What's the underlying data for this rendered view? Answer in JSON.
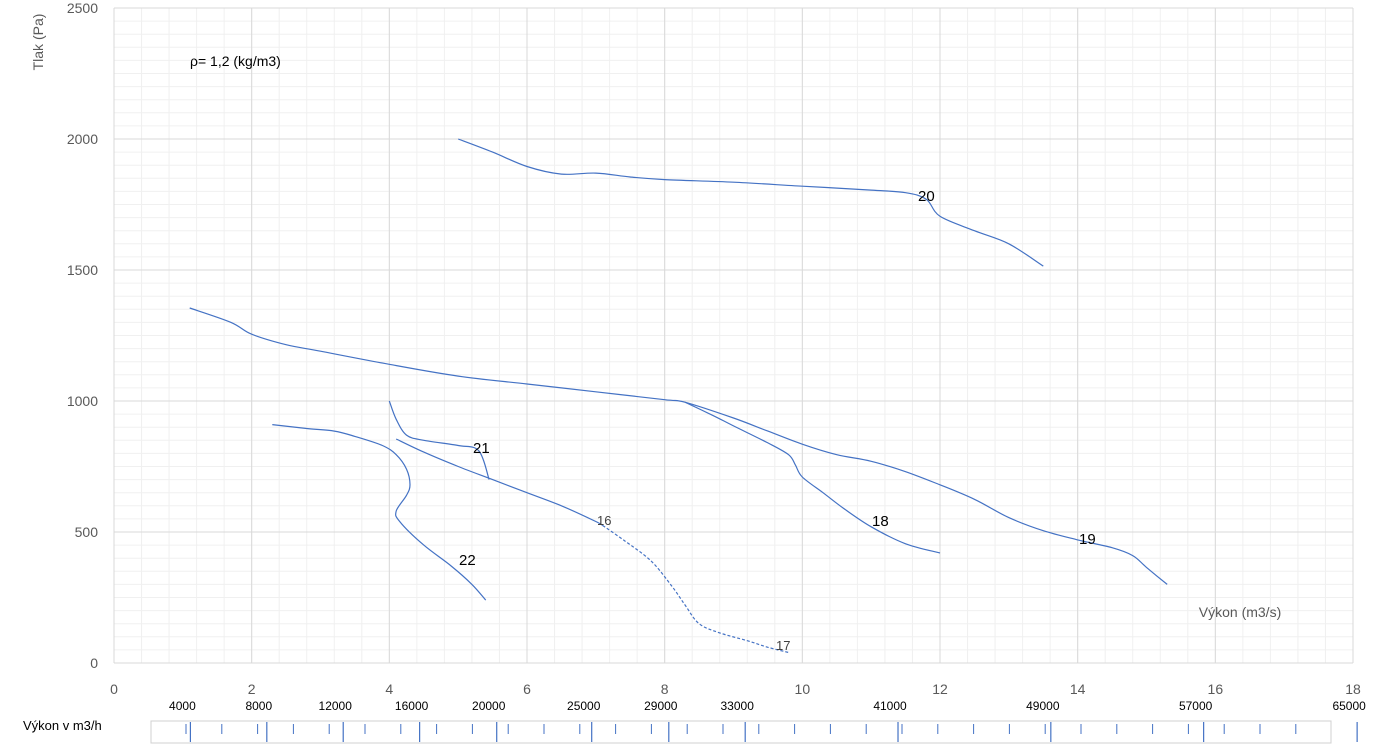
{
  "chart_data": {
    "type": "line",
    "title": "",
    "xlabel": "Výkon (m3/s)",
    "ylabel": "Tlak (Pa)",
    "xlim": [
      0,
      18
    ],
    "ylim": [
      0,
      2500
    ],
    "x_ticks": [
      "0",
      "2",
      "4",
      "6",
      "8",
      "10",
      "12",
      "14",
      "16",
      "18"
    ],
    "y_ticks": [
      "0",
      "500",
      "1000",
      "1500",
      "2000",
      "2500"
    ],
    "grid": true,
    "annotation": "ρ= 1,2 (kg/m3)",
    "line_color": "#4472c4",
    "series": [
      {
        "name": "20",
        "style": "solid",
        "x": [
          5.0,
          5.5,
          6.0,
          6.5,
          7.0,
          7.5,
          8.0,
          9.0,
          10.0,
          11.0,
          11.5,
          11.8,
          12.0,
          12.5,
          13.0,
          13.5
        ],
        "y": [
          2000,
          1950,
          1895,
          1866,
          1870,
          1855,
          1845,
          1835,
          1820,
          1805,
          1795,
          1770,
          1705,
          1650,
          1600,
          1515
        ]
      },
      {
        "name": "19",
        "style": "solid",
        "x": [
          1.1,
          1.7,
          2.0,
          2.5,
          3.0,
          4.0,
          5.0,
          6.0,
          7.0,
          8.0,
          8.3,
          9.0,
          9.5,
          10.0,
          10.5,
          11.0,
          11.5,
          12.0,
          12.5,
          13.0,
          13.5,
          14.0,
          14.5,
          14.8,
          15.0,
          15.3
        ],
        "y": [
          1355,
          1300,
          1255,
          1215,
          1190,
          1140,
          1095,
          1065,
          1035,
          1005,
          995,
          935,
          885,
          835,
          795,
          770,
          730,
          680,
          625,
          555,
          505,
          470,
          440,
          410,
          365,
          300
        ]
      },
      {
        "name": "18",
        "style": "solid",
        "x": [
          8.3,
          8.7,
          9.0,
          9.5,
          9.8,
          9.9,
          10.0,
          10.3,
          10.6,
          11.0,
          11.5,
          12.0
        ],
        "y": [
          995,
          945,
          905,
          840,
          795,
          755,
          710,
          650,
          590,
          520,
          455,
          420
        ]
      },
      {
        "name": "16",
        "style": "solid",
        "x": [
          4.1,
          4.5,
          5.0,
          5.5,
          6.0,
          6.5,
          7.0,
          7.1
        ],
        "y": [
          855,
          805,
          750,
          700,
          650,
          600,
          540,
          525
        ]
      },
      {
        "name": "17",
        "style": "dashed",
        "x": [
          7.1,
          7.4,
          7.8,
          8.1,
          8.3,
          8.5,
          8.8,
          9.2,
          9.5,
          9.8
        ],
        "y": [
          525,
          470,
          390,
          295,
          220,
          150,
          115,
          85,
          60,
          40
        ]
      },
      {
        "name": "21",
        "style": "solid",
        "x": [
          4.0,
          4.1,
          4.25,
          4.5,
          5.0,
          5.3,
          5.45
        ],
        "y": [
          1000,
          930,
          870,
          850,
          830,
          810,
          700
        ]
      },
      {
        "name": "22",
        "style": "solid",
        "x": [
          2.3,
          2.8,
          3.2,
          3.5,
          3.9,
          4.1,
          4.25,
          4.3,
          4.25,
          4.1,
          4.15,
          4.5,
          4.9,
          5.2,
          5.4
        ],
        "y": [
          910,
          895,
          885,
          865,
          830,
          795,
          740,
          680,
          640,
          580,
          540,
          450,
          370,
          300,
          240
        ]
      }
    ]
  },
  "flow_axis": {
    "title": "Výkon v m3/h",
    "labels": [
      {
        "text": "4000",
        "x_m3s": 1.11
      },
      {
        "text": "8000",
        "x_m3s": 2.22
      },
      {
        "text": "12000",
        "x_m3s": 3.33
      },
      {
        "text": "16000",
        "x_m3s": 4.44
      },
      {
        "text": "20000",
        "x_m3s": 5.56
      },
      {
        "text": "25000",
        "x_m3s": 6.94
      },
      {
        "text": "29000",
        "x_m3s": 8.06
      },
      {
        "text": "33000",
        "x_m3s": 9.17
      },
      {
        "text": "41000",
        "x_m3s": 11.39
      },
      {
        "text": "49000",
        "x_m3s": 13.61
      },
      {
        "text": "57000",
        "x_m3s": 15.83
      },
      {
        "text": "65000",
        "x_m3s": 18.06
      }
    ]
  }
}
